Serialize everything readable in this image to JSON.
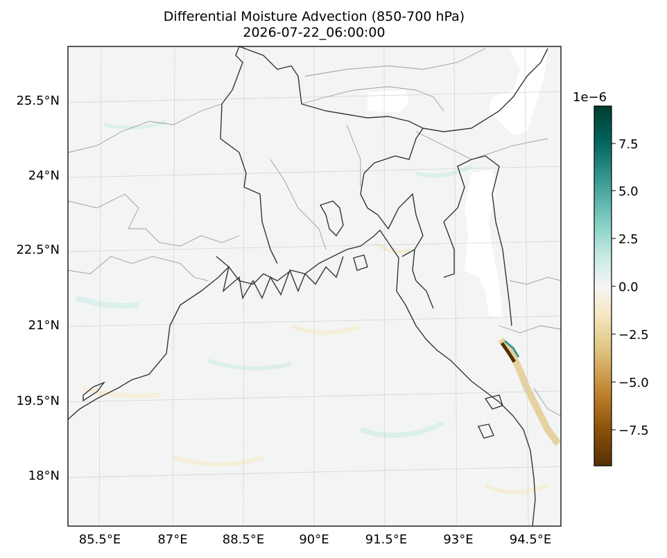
{
  "title": {
    "line1": "Differential Moisture Advection (850-700 hPa)",
    "line2": "2026-07-22_06:00:00"
  },
  "axes": {
    "lon_ticks": [
      "85.5°E",
      "87°E",
      "88.5°E",
      "90°E",
      "91.5°E",
      "93°E",
      "94.5°E"
    ],
    "lat_ticks": [
      "25.5°N",
      "24°N",
      "22.5°N",
      "21°N",
      "19.5°N",
      "18°N"
    ]
  },
  "colorbar": {
    "exponent_label": "1e−6",
    "colormap": "BrBG",
    "range": [
      -9.3e-06,
      9.3e-06
    ],
    "tick_labels": [
      "7.5",
      "5.0",
      "2.5",
      "0.0",
      "−2.5",
      "−5.0",
      "−7.5"
    ],
    "tick_values": [
      7.5,
      5.0,
      2.5,
      0.0,
      -2.5,
      -5.0,
      -7.5
    ],
    "colors": [
      "#543005",
      "#8c510a",
      "#bf812d",
      "#dfc27d",
      "#f6e8c3",
      "#f5f5f5",
      "#c7eae5",
      "#80cdc1",
      "#35978f",
      "#01665e",
      "#003c30"
    ]
  },
  "map": {
    "extent_lon": [
      84.8,
      95.2
    ],
    "extent_lat": [
      16.9,
      26.4
    ],
    "background_color": "#f3f5f4",
    "coastline_color": "#333333",
    "border_color": "#9a9a9a",
    "gridlines": true
  }
}
